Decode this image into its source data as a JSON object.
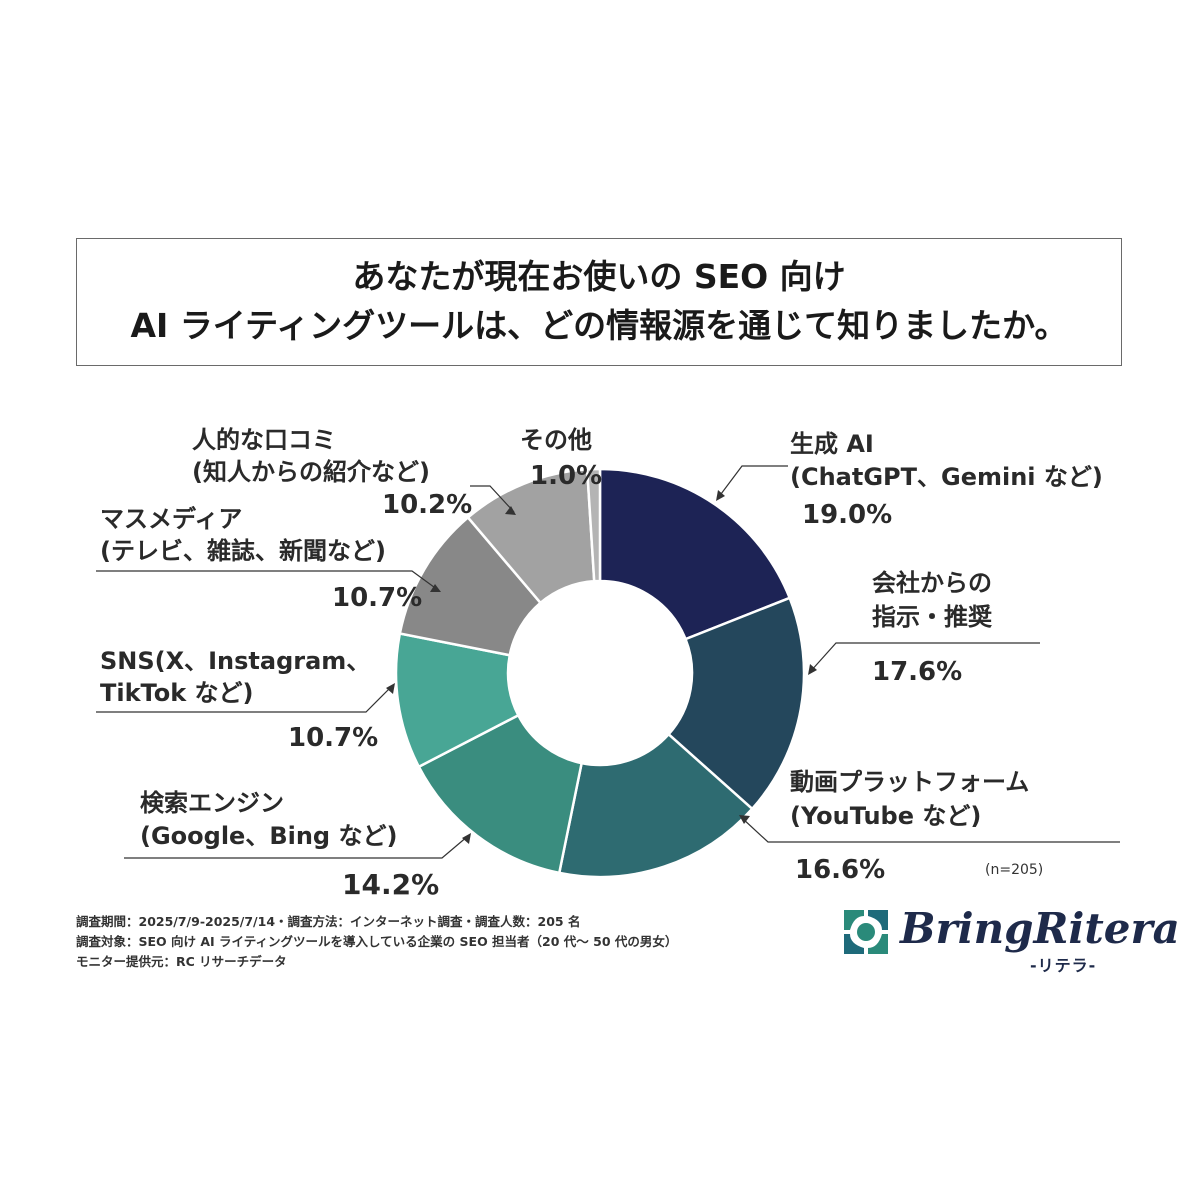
{
  "title": {
    "line1": "あなたが現在お使いの SEO 向け",
    "line2": "AI ライティングツールは、どの情報源を通じて知りましたか。"
  },
  "chart_data": {
    "type": "pie",
    "subtype": "donut",
    "categories": [
      "生成 AI（ChatGPT、Gemini など）",
      "会社からの指示・推奨",
      "動画プラットフォーム（YouTube など）",
      "検索エンジン（Google、Bing など）",
      "SNS（X、Instagram、TikTok など）",
      "マスメディア（テレビ、雑誌、新聞など）",
      "人的な口コミ（知人からの紹介など）",
      "その他"
    ],
    "values": [
      19.0,
      17.6,
      16.6,
      14.2,
      10.7,
      10.7,
      10.2,
      1.0
    ],
    "colors": [
      "#1d2355",
      "#24475c",
      "#2e6b71",
      "#3a8d7f",
      "#48a695",
      "#888888",
      "#a2a2a2",
      "#b4b4b4"
    ],
    "sample": "(n=205)"
  },
  "labels": {
    "genai": {
      "line1": "生成 AI",
      "line2": "(ChatGPT、Gemini など)",
      "pct": "19.0%"
    },
    "company": {
      "line1": "会社からの",
      "line2": "指示・推奨",
      "pct": "17.6%"
    },
    "video": {
      "line1": "動画プラットフォーム",
      "line2": "(YouTube など)",
      "pct": "16.6%"
    },
    "search": {
      "line1": "検索エンジン",
      "line2": "(Google、Bing など)",
      "pct": "14.2%"
    },
    "sns": {
      "line1": "SNS(X、Instagram、",
      "line2": "TikTok など)",
      "pct": "10.7%"
    },
    "media": {
      "line1": "マスメディア",
      "line2": "(テレビ、雑誌、新聞など)",
      "pct": "10.7%"
    },
    "wom": {
      "line1": "人的な口コミ",
      "line2": "(知人からの紹介など)",
      "pct": "10.2%"
    },
    "other": {
      "line1": "その他",
      "pct": "1.0%"
    }
  },
  "notes": {
    "line1": "調査期間：2025/7/9-2025/7/14・調査方法：インターネット調査・調査人数：205 名",
    "line2": "調査対象：SEO 向け AI ライティングツールを導入している企業の SEO 担当者（20 代～ 50 代の男女）",
    "line3": "モニター提供元：RC リサーチデータ"
  },
  "logo": {
    "name": "BringRitera",
    "sub": "-リテラ-",
    "colors": [
      "#2a8a7a",
      "#1e2a4a"
    ]
  }
}
